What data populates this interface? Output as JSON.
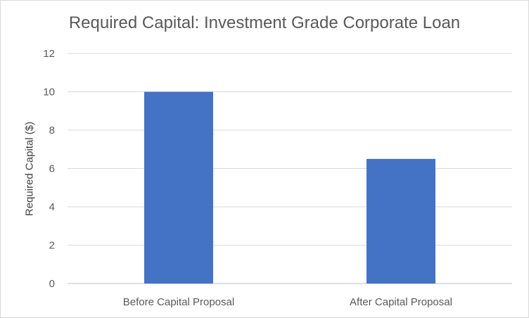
{
  "chart_data": {
    "type": "bar",
    "title": "Required Capital: Investment Grade Corporate Loan",
    "xlabel": "",
    "ylabel": "Required Capital ($)",
    "categories": [
      "Before Capital Proposal",
      "After Capital Proposal"
    ],
    "values": [
      10,
      6.5
    ],
    "ylim": [
      0,
      12
    ],
    "yticks": [
      0,
      2,
      4,
      6,
      8,
      10,
      12
    ],
    "grid": true,
    "legend": "none",
    "bar_color": "#4472C4"
  }
}
